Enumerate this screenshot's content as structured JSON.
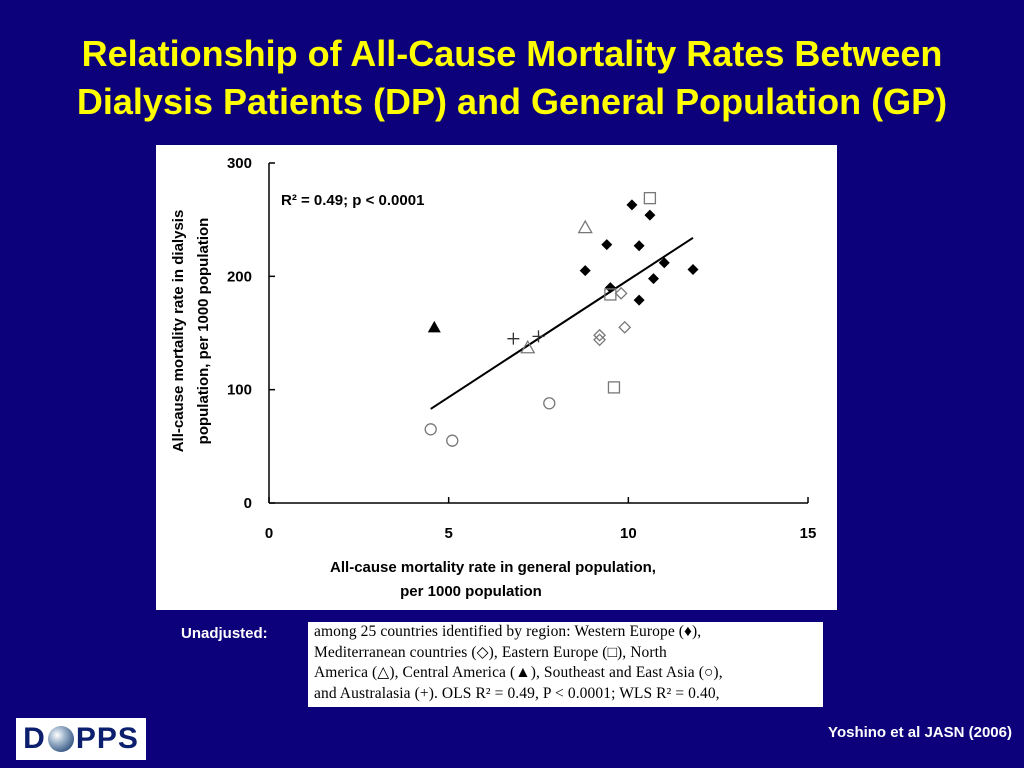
{
  "slide": {
    "title_line1": "Relationship of All-Cause Mortality Rates Between",
    "title_line2": "Dialysis Patients (DP) and General Population (GP)",
    "unadjusted_label": "Unadjusted:",
    "caption_lines": [
      "among 25 countries identified by region: Western Europe (♦),",
      "Mediterranean countries (◇), Eastern Europe (□), North",
      "America (△), Central America (▲), Southeast and East Asia (○),",
      "and Australasia (+). OLS R² = 0.49, P < 0.0001; WLS R² = 0.40,"
    ],
    "logo_left": "D",
    "logo_right": "PPS",
    "citation": "Yoshino et al JASN (2006)",
    "title_color": "#ffff00",
    "background_color": "#0c007b"
  },
  "chart_data": {
    "type": "scatter",
    "annotation": "R² = 0.49; p < 0.0001",
    "xlabel_line1": "All-cause mortality rate in general population,",
    "xlabel_line2": "per 1000 population",
    "ylabel_line1": "All-cause mortality rate in dialysis",
    "ylabel_line2": "population, per 1000 population",
    "xlim": [
      0,
      15
    ],
    "ylim": [
      0,
      300
    ],
    "x_ticks": [
      0,
      5,
      10,
      15
    ],
    "y_ticks": [
      0,
      100,
      200,
      300
    ],
    "x_tick_labels": [
      "0",
      "5",
      "10",
      "15"
    ],
    "y_tick_labels": [
      "0",
      "100",
      "200",
      "300"
    ],
    "grid": false,
    "regression_line": {
      "x": [
        4.5,
        11.8
      ],
      "y": [
        83,
        234
      ]
    },
    "series": [
      {
        "marker": "filled-diamond",
        "points": [
          [
            8.8,
            205
          ],
          [
            9.4,
            228
          ],
          [
            10.1,
            263
          ],
          [
            10.6,
            254
          ],
          [
            10.3,
            227
          ],
          [
            9.5,
            190
          ],
          [
            10.7,
            198
          ],
          [
            11.0,
            212
          ],
          [
            10.3,
            179
          ],
          [
            11.8,
            206
          ]
        ]
      },
      {
        "marker": "open-diamond",
        "points": [
          [
            9.2,
            148
          ],
          [
            9.2,
            144
          ],
          [
            9.8,
            185
          ],
          [
            9.9,
            155
          ]
        ]
      },
      {
        "marker": "open-square",
        "points": [
          [
            10.6,
            269
          ],
          [
            9.5,
            184
          ],
          [
            9.6,
            102
          ]
        ]
      },
      {
        "marker": "open-triangle",
        "points": [
          [
            8.8,
            243
          ],
          [
            7.2,
            137
          ]
        ]
      },
      {
        "marker": "filled-triangle",
        "points": [
          [
            4.6,
            155
          ]
        ]
      },
      {
        "marker": "open-circle",
        "points": [
          [
            4.5,
            65
          ],
          [
            5.1,
            55
          ],
          [
            7.8,
            88
          ]
        ]
      },
      {
        "marker": "plus",
        "points": [
          [
            6.8,
            145
          ],
          [
            7.5,
            147
          ]
        ]
      }
    ]
  }
}
